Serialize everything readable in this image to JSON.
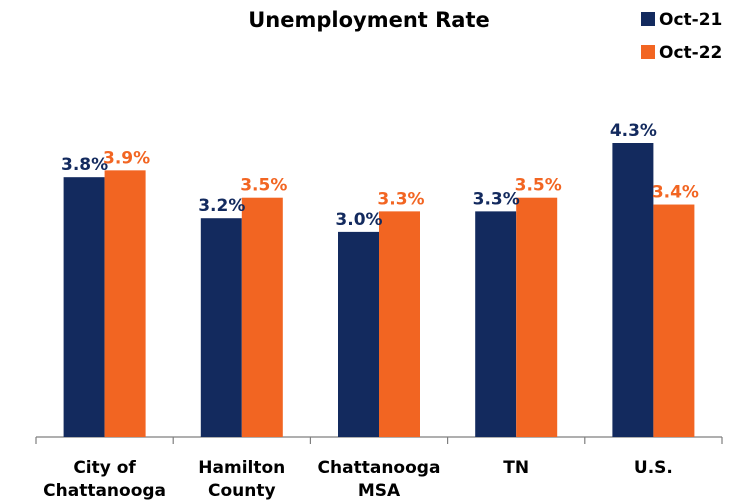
{
  "chart_data": {
    "type": "bar",
    "title": "Unemployment Rate",
    "categories": [
      [
        "City of",
        "Chattanooga"
      ],
      [
        "Hamilton",
        "County"
      ],
      [
        "Chattanooga",
        "MSA"
      ],
      [
        "TN"
      ],
      [
        "U.S."
      ]
    ],
    "series": [
      {
        "name": "Oct-21",
        "color": "#132a5e",
        "values": [
          3.8,
          3.2,
          3.0,
          3.3,
          4.3
        ],
        "labels": [
          "3.8%",
          "3.2%",
          "3.0%",
          "3.3%",
          "4.3%"
        ]
      },
      {
        "name": "Oct-22",
        "color": "#f26522",
        "values": [
          3.9,
          3.5,
          3.3,
          3.5,
          3.4
        ],
        "labels": [
          "3.9%",
          "3.5%",
          "3.3%",
          "3.5%",
          "3.4%"
        ]
      }
    ],
    "ylim": [
      0,
      4.5
    ],
    "grid": false,
    "legend_position": "top-right"
  }
}
